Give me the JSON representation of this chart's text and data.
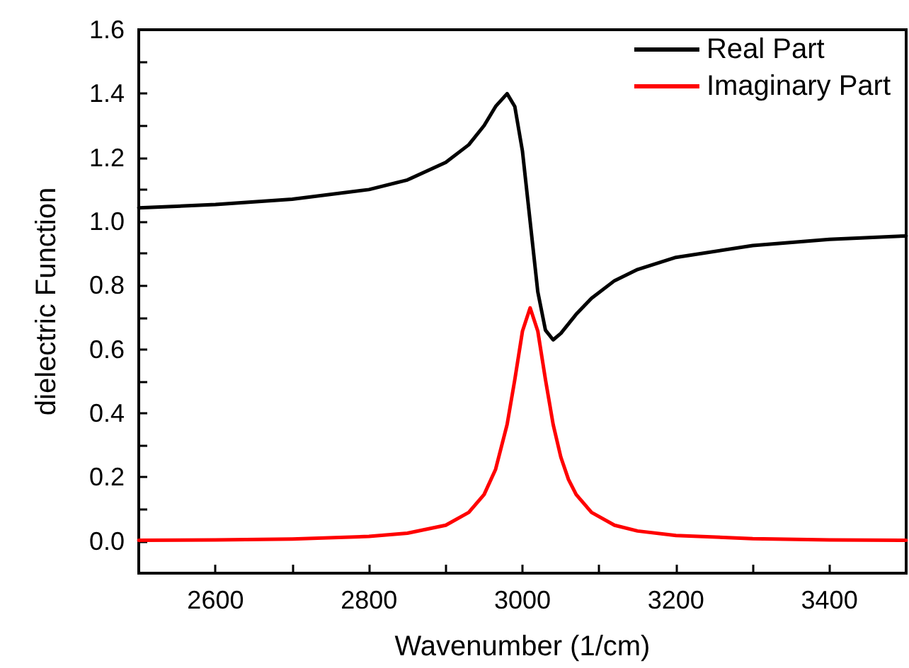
{
  "chart_data": {
    "type": "line",
    "xlabel": "Wavenumber (1/cm)",
    "ylabel": "dielectric Function",
    "xlim": [
      2500,
      3500
    ],
    "ylim": [
      -0.1,
      1.6
    ],
    "xticks": [
      {
        "value": 2500,
        "label": null
      },
      2600,
      {
        "value": 2700,
        "label": null
      },
      2800,
      {
        "value": 2900,
        "label": null
      },
      3000,
      {
        "value": 3100,
        "label": null
      },
      3200,
      {
        "value": 3300,
        "label": null
      },
      3400,
      {
        "value": 3500,
        "label": null
      }
    ],
    "yticks": [
      {
        "value": 0,
        "label": "0.0"
      },
      {
        "value": 0.1,
        "label": null
      },
      {
        "value": 0.2,
        "label": "0.2"
      },
      {
        "value": 0.3,
        "label": null
      },
      {
        "value": 0.4,
        "label": "0.4"
      },
      {
        "value": 0.5,
        "label": null
      },
      {
        "value": 0.6,
        "label": "0.6"
      },
      {
        "value": 0.7,
        "label": null
      },
      {
        "value": 0.8,
        "label": "0.8"
      },
      {
        "value": 0.9,
        "label": null
      },
      {
        "value": 1,
        "label": "1.0"
      },
      {
        "value": 1.1,
        "label": null
      },
      {
        "value": 1.2,
        "label": "1.2"
      },
      {
        "value": 1.3,
        "label": null
      },
      {
        "value": 1.4,
        "label": "1.4"
      },
      {
        "value": 1.5,
        "label": null
      },
      {
        "value": 1.6,
        "label": "1.6"
      }
    ],
    "x": [
      2500,
      2600,
      2700,
      2800,
      2850,
      2900,
      2930,
      2950,
      2965,
      2980,
      2990,
      3000,
      3010,
      3020,
      3030,
      3040,
      3050,
      3060,
      3070,
      3090,
      3120,
      3150,
      3200,
      3300,
      3400,
      3500
    ],
    "series": [
      {
        "name": "Real Part",
        "color": "#000000",
        "values": [
          1.043,
          1.053,
          1.07,
          1.1,
          1.13,
          1.185,
          1.24,
          1.3,
          1.36,
          1.4,
          1.36,
          1.22,
          1.0,
          0.78,
          0.66,
          0.63,
          0.65,
          0.68,
          0.71,
          0.76,
          0.815,
          0.85,
          0.888,
          0.925,
          0.944,
          0.955
        ]
      },
      {
        "name": "Imaginary Part",
        "color": "#ff0000",
        "values": [
          0.003,
          0.004,
          0.007,
          0.015,
          0.025,
          0.05,
          0.09,
          0.146,
          0.225,
          0.365,
          0.505,
          0.657,
          0.73,
          0.657,
          0.505,
          0.365,
          0.263,
          0.193,
          0.146,
          0.09,
          0.05,
          0.032,
          0.018,
          0.008,
          0.004,
          0.003
        ]
      }
    ],
    "legend": "top right",
    "grid": false,
    "marker": "none",
    "line_style": "solid"
  }
}
